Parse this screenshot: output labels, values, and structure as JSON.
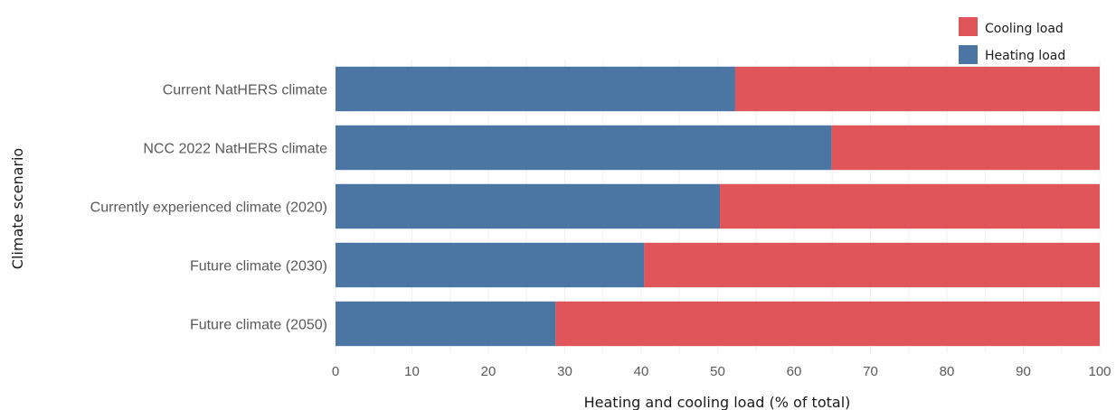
{
  "chart_data": {
    "type": "bar",
    "orientation": "horizontal",
    "stacked": true,
    "categories": [
      "Current NatHERS climate",
      "NCC 2022 NatHERS climate",
      "Currently experienced climate (2020)",
      "Future climate (2030)",
      "Future climate (2050)"
    ],
    "series": [
      {
        "name": "Heating load",
        "color": "#4b76a3",
        "values": [
          52.3,
          64.9,
          50.3,
          40.4,
          28.8
        ]
      },
      {
        "name": "Cooling load",
        "color": "#e0555a",
        "values": [
          47.7,
          35.1,
          49.7,
          59.6,
          71.2
        ]
      }
    ],
    "xlabel": "Heating and cooling load (% of total)",
    "ylabel": "Climate scenario",
    "xlim": [
      0,
      100
    ],
    "xticks": [
      "0",
      "10",
      "20",
      "30",
      "40",
      "50",
      "60",
      "70",
      "80",
      "90",
      "100"
    ],
    "legend": {
      "placement": "top-right",
      "items": [
        {
          "label": "Cooling load",
          "color": "#e0555a"
        },
        {
          "label": "Heating load",
          "color": "#4b76a3"
        }
      ]
    },
    "grid": true
  }
}
